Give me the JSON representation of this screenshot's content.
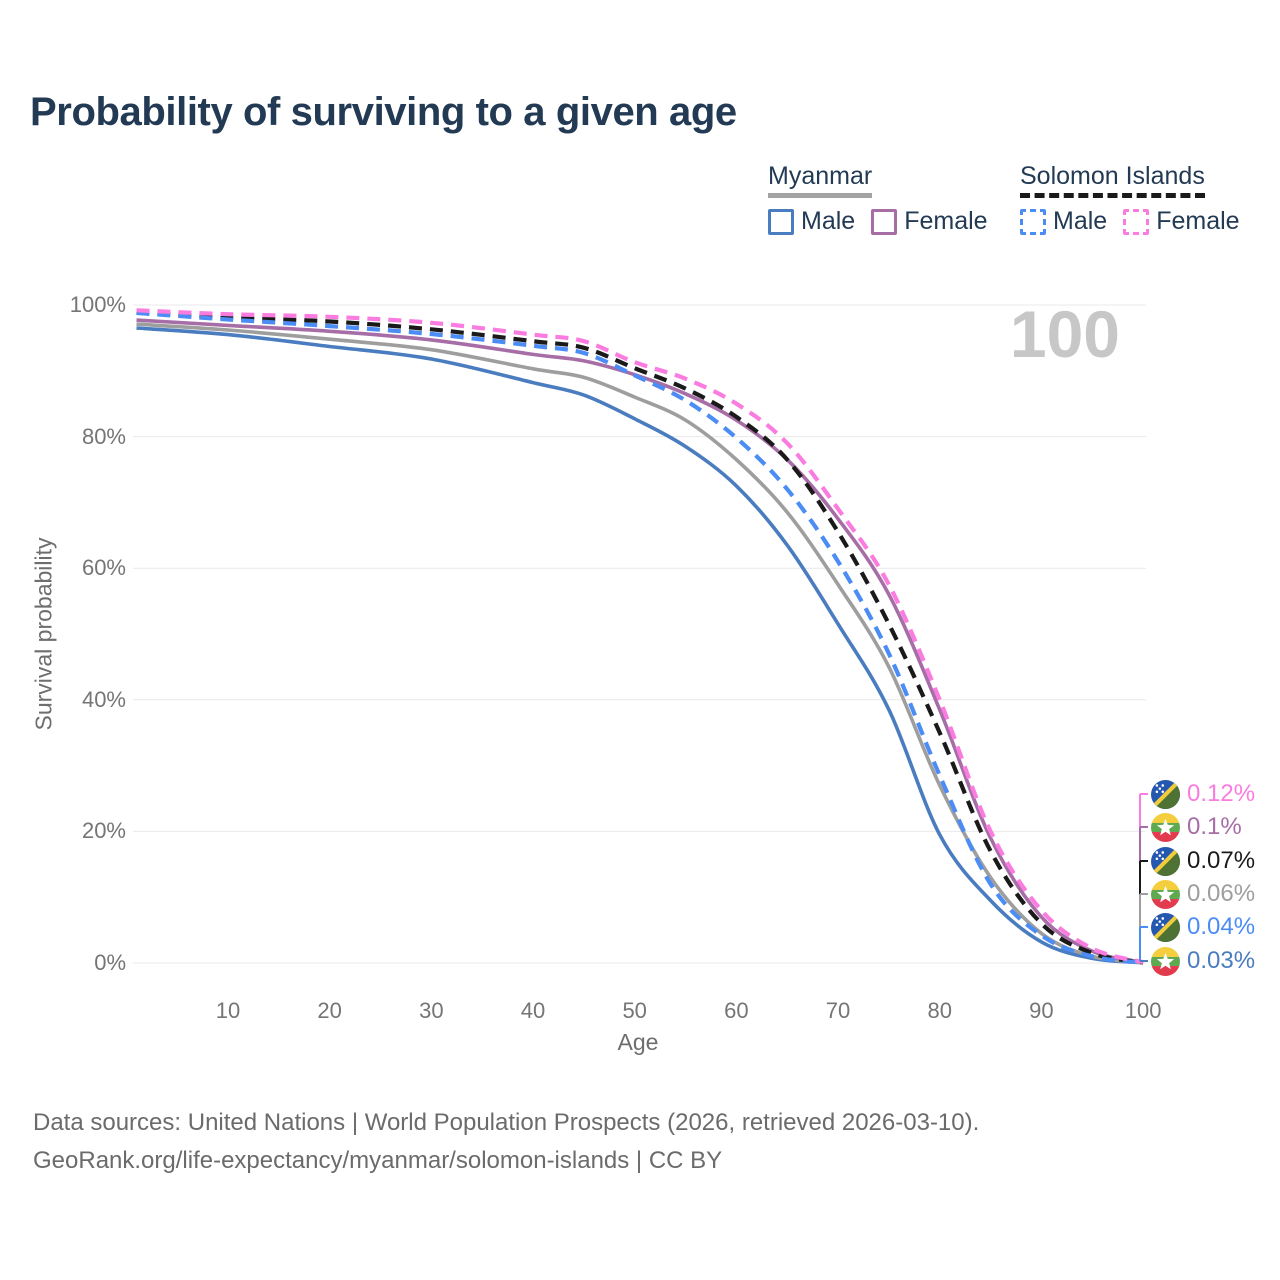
{
  "page": {
    "title": "Probability of surviving to a given age"
  },
  "legend": {
    "groups": [
      {
        "label": "Myanmar",
        "line_style": "solid",
        "line_color": "#a3a3a3",
        "items": [
          {
            "label": "Male",
            "color": "#4a7cc0",
            "box_style": "solid"
          },
          {
            "label": "Female",
            "color": "#a76da6",
            "box_style": "solid"
          }
        ]
      },
      {
        "label": "Solomon Islands",
        "line_style": "dashed",
        "line_color": "#1a1a1a",
        "items": [
          {
            "label": "Male",
            "color": "#4b8cf5",
            "box_style": "dashed"
          },
          {
            "label": "Female",
            "color": "#fb7ce0",
            "box_style": "dashed"
          }
        ]
      }
    ]
  },
  "chart_data": {
    "type": "line",
    "title": "Probability of surviving to a given age",
    "xlabel": "Age",
    "ylabel": "Survival probability",
    "xlim": [
      0,
      100
    ],
    "ylim": [
      0,
      100
    ],
    "grid": "horizontal",
    "legend_position": "top-right",
    "annotation": "100",
    "y_ticks": [
      {
        "label": "0%",
        "value": 0
      },
      {
        "label": "20%",
        "value": 20
      },
      {
        "label": "40%",
        "value": 40
      },
      {
        "label": "60%",
        "value": 60
      },
      {
        "label": "80%",
        "value": 80
      },
      {
        "label": "100%",
        "value": 100
      }
    ],
    "x_ticks": [
      {
        "label": "10",
        "value": 10
      },
      {
        "label": "20",
        "value": 20
      },
      {
        "label": "30",
        "value": 30
      },
      {
        "label": "40",
        "value": 40
      },
      {
        "label": "50",
        "value": 50
      },
      {
        "label": "60",
        "value": 60
      },
      {
        "label": "70",
        "value": 70
      },
      {
        "label": "80",
        "value": 80
      },
      {
        "label": "90",
        "value": 90
      },
      {
        "label": "100",
        "value": 100
      }
    ],
    "ages": [
      1,
      10,
      20,
      30,
      40,
      45,
      50,
      55,
      60,
      65,
      70,
      75,
      80,
      85,
      90,
      95,
      100
    ],
    "series": [
      {
        "id": "myanmar-male",
        "country": "Myanmar",
        "sex": "Male",
        "style": "solid",
        "color": "#4a7cc0",
        "values": [
          96.5,
          95.5,
          93.7,
          91.8,
          88.2,
          86.3,
          82.7,
          78.5,
          72.5,
          63.5,
          51.5,
          38.5,
          19.5,
          9.5,
          3.2,
          0.7,
          0.03
        ]
      },
      {
        "id": "myanmar-all",
        "country": "Myanmar",
        "sex": "Both sexes",
        "style": "solid",
        "color": "#9e9e9e",
        "values": [
          97.1,
          96.2,
          94.8,
          93.2,
          90.3,
          89.0,
          86.0,
          82.5,
          76.5,
          68.5,
          57.5,
          45.0,
          27.0,
          13.0,
          4.5,
          1.0,
          0.06
        ]
      },
      {
        "id": "myanmar-female",
        "country": "Myanmar",
        "sex": "Female",
        "style": "solid",
        "color": "#a76da6",
        "values": [
          97.7,
          96.9,
          96.0,
          94.7,
          92.5,
          91.5,
          89.4,
          86.5,
          82.5,
          76.5,
          67.5,
          56.0,
          38.5,
          19.0,
          7.0,
          1.8,
          0.1
        ]
      },
      {
        "id": "solomon-all",
        "country": "Solomon Islands",
        "sex": "Both sexes",
        "style": "dashed",
        "color": "#1a1a1a",
        "values": [
          99.0,
          98.1,
          97.5,
          96.3,
          94.5,
          93.5,
          90.4,
          87.3,
          83.0,
          76.5,
          65.5,
          51.5,
          35.0,
          17.0,
          6.0,
          1.5,
          0.07
        ]
      },
      {
        "id": "solomon-male",
        "country": "Solomon Islands",
        "sex": "Male",
        "style": "dashed",
        "color": "#4b8cf5",
        "values": [
          98.8,
          97.8,
          96.8,
          95.6,
          93.8,
          92.7,
          89.3,
          85.5,
          79.8,
          72.0,
          61.0,
          47.0,
          28.5,
          12.0,
          4.2,
          1.0,
          0.04
        ]
      },
      {
        "id": "solomon-female",
        "country": "Solomon Islands",
        "sex": "Female",
        "style": "dashed",
        "color": "#fb7ce0",
        "values": [
          99.2,
          98.6,
          98.2,
          97.3,
          95.5,
          94.5,
          91.3,
          88.8,
          85.0,
          79.0,
          69.0,
          57.5,
          40.0,
          20.0,
          8.0,
          2.2,
          0.12
        ]
      }
    ],
    "end_labels": [
      {
        "text": "0.12%",
        "flag": "solomon-islands",
        "color": "#fb7ce0",
        "age": 100
      },
      {
        "text": "0.1%",
        "flag": "myanmar",
        "color": "#a76da6",
        "age": 100
      },
      {
        "text": "0.07%",
        "flag": "solomon-islands",
        "color": "#1a1a1a",
        "age": 100
      },
      {
        "text": "0.06%",
        "flag": "myanmar",
        "color": "#9e9e9e",
        "age": 100
      },
      {
        "text": "0.04%",
        "flag": "solomon-islands",
        "color": "#4b8cf5",
        "age": 100
      },
      {
        "text": "0.03%",
        "flag": "myanmar",
        "color": "#4a7cc0",
        "age": 100
      }
    ]
  },
  "footer": {
    "line1": "Data sources: United Nations | World Population Prospects (2026, retrieved 2026-03-10).",
    "line2": "GeoRank.org/life-expectancy/myanmar/solomon-islands | CC BY"
  }
}
